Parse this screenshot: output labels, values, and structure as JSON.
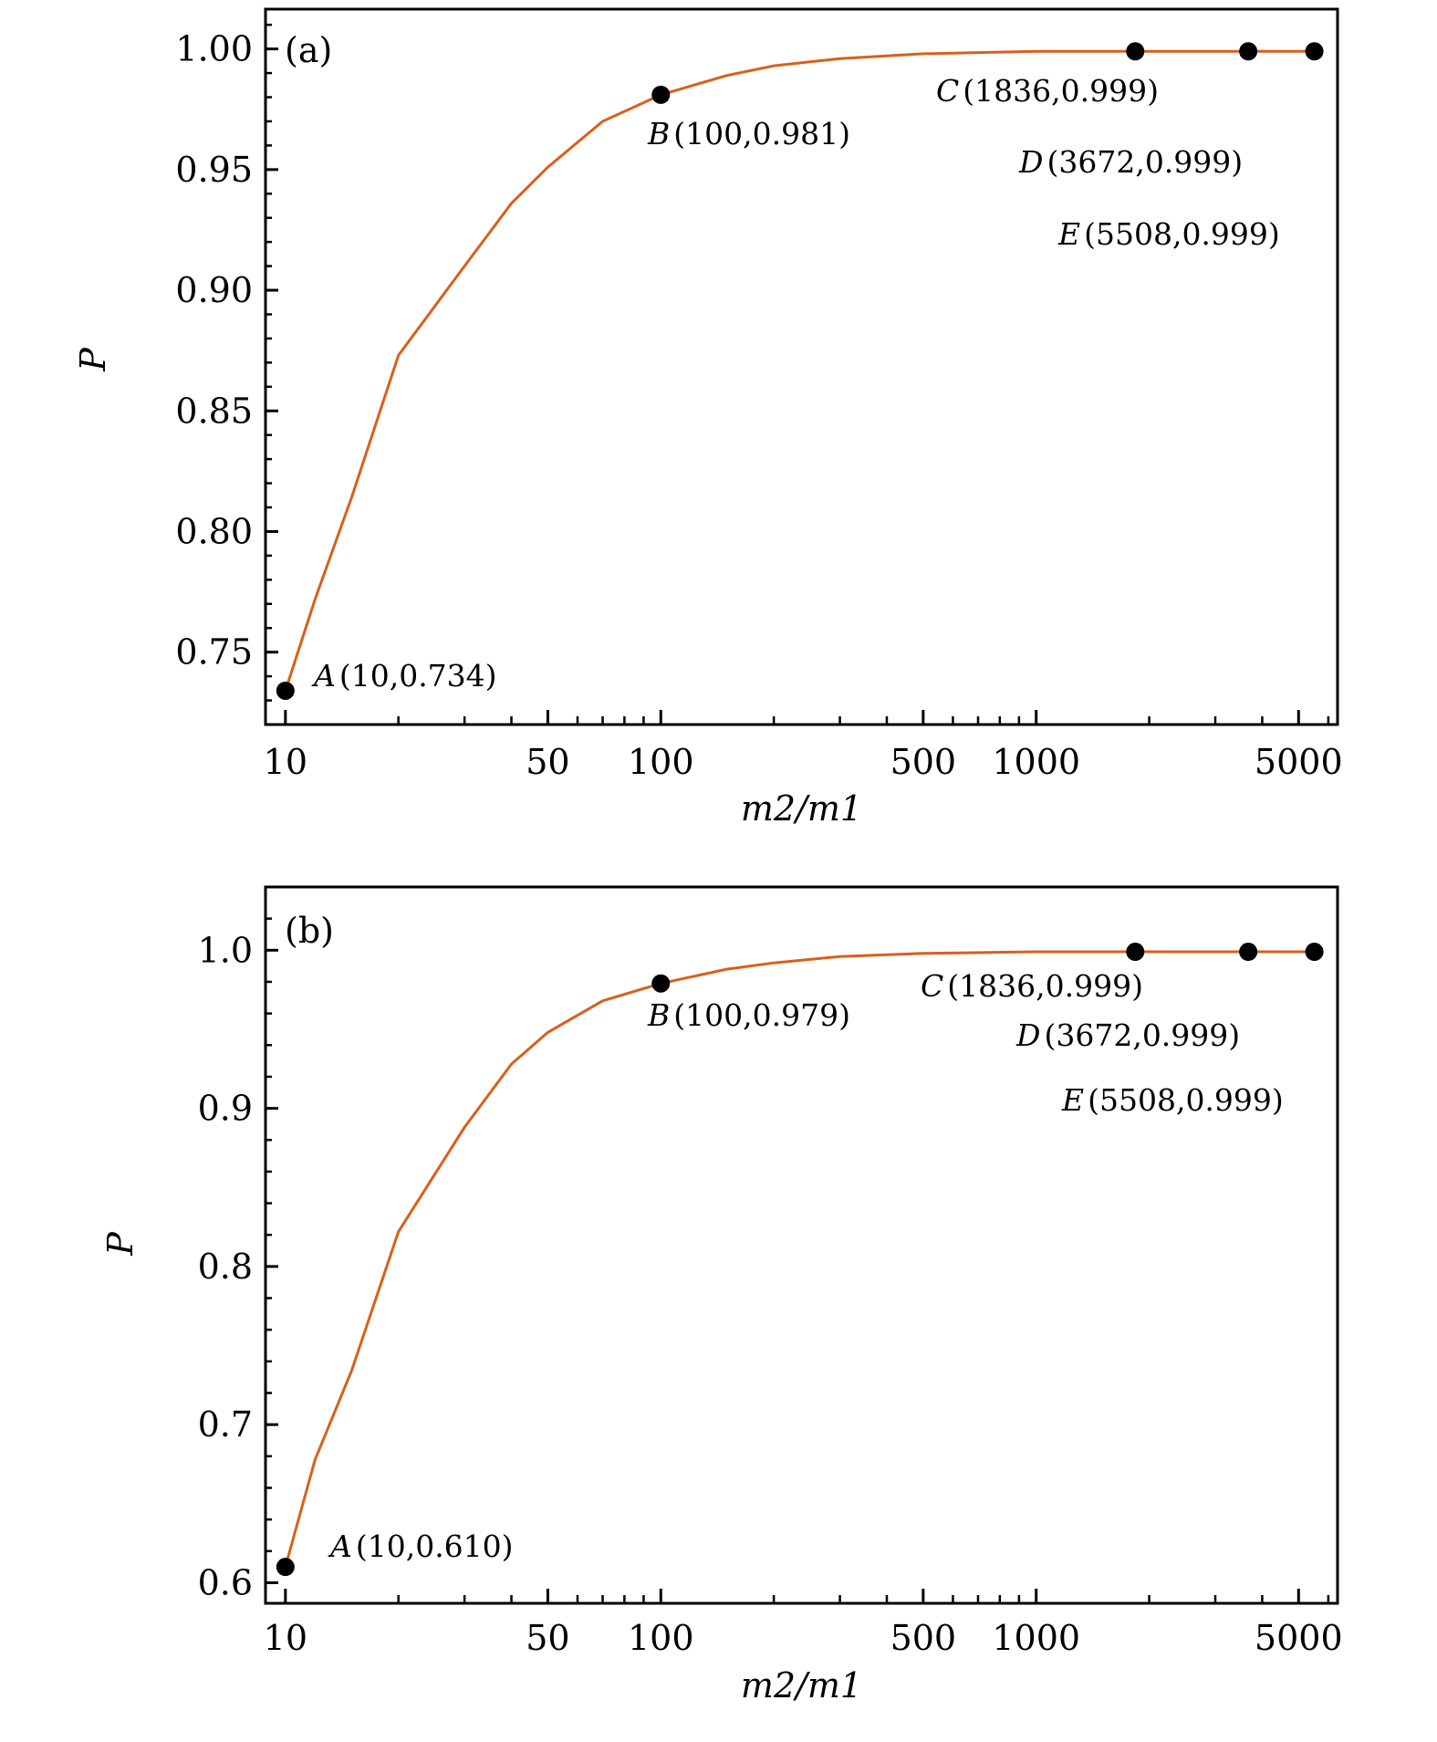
{
  "chart_data": [
    {
      "type": "line",
      "panel_label": "(a)",
      "xlabel": "m2/m1",
      "ylabel": "P",
      "xscale": "log",
      "xlim": [
        8.85,
        6350
      ],
      "ylim": [
        0.72,
        1.0165
      ],
      "xticks": [
        "10",
        "50",
        "100",
        "500",
        "1000",
        "5000"
      ],
      "yticks": [
        "0.75",
        "0.80",
        "0.85",
        "0.90",
        "0.95",
        "1.00"
      ],
      "grid": false,
      "line_color": "#d9601a",
      "curve": {
        "x": [
          10,
          12,
          15,
          20,
          30,
          40,
          50,
          70,
          100,
          150,
          200,
          300,
          500,
          1000,
          1836,
          3672,
          5508
        ],
        "y": [
          0.734,
          0.772,
          0.814,
          0.873,
          0.91,
          0.936,
          0.951,
          0.97,
          0.981,
          0.989,
          0.993,
          0.996,
          0.998,
          0.999,
          0.999,
          0.999,
          0.999
        ]
      },
      "points": [
        {
          "letter": "A",
          "coords": "(10,0.734)",
          "x": 10,
          "y": 0.734
        },
        {
          "letter": "B",
          "coords": "(100,0.981)",
          "x": 100,
          "y": 0.981
        },
        {
          "letter": "C",
          "coords": "(1836,0.999)",
          "x": 1836,
          "y": 0.999
        },
        {
          "letter": "D",
          "coords": "(3672,0.999)",
          "x": 3672,
          "y": 0.999
        },
        {
          "letter": "E",
          "coords": "(5508,0.999)",
          "x": 5508,
          "y": 0.999
        }
      ]
    },
    {
      "type": "line",
      "panel_label": "(b)",
      "xlabel": "m2/m1",
      "ylabel": "P",
      "xscale": "log",
      "xlim": [
        8.85,
        6350
      ],
      "ylim": [
        0.587,
        1.04
      ],
      "xticks": [
        "10",
        "50",
        "100",
        "500",
        "1000",
        "5000"
      ],
      "yticks": [
        "0.6",
        "0.7",
        "0.8",
        "0.9",
        "1.0"
      ],
      "grid": false,
      "line_color": "#d9601a",
      "curve": {
        "x": [
          10,
          12,
          15,
          20,
          30,
          40,
          50,
          70,
          100,
          150,
          200,
          300,
          500,
          1000,
          1836,
          3672,
          5508
        ],
        "y": [
          0.61,
          0.678,
          0.734,
          0.822,
          0.888,
          0.928,
          0.948,
          0.968,
          0.979,
          0.988,
          0.992,
          0.996,
          0.998,
          0.999,
          0.999,
          0.999,
          0.999
        ]
      },
      "points": [
        {
          "letter": "A",
          "coords": "(10,0.610)",
          "x": 10,
          "y": 0.61
        },
        {
          "letter": "B",
          "coords": "(100,0.979)",
          "x": 100,
          "y": 0.979
        },
        {
          "letter": "C",
          "coords": "(1836,0.999)",
          "x": 1836,
          "y": 0.999
        },
        {
          "letter": "D",
          "coords": "(3672,0.999)",
          "x": 3672,
          "y": 0.999
        },
        {
          "letter": "E",
          "coords": "(5508,0.999)",
          "x": 5508,
          "y": 0.999
        }
      ]
    }
  ]
}
